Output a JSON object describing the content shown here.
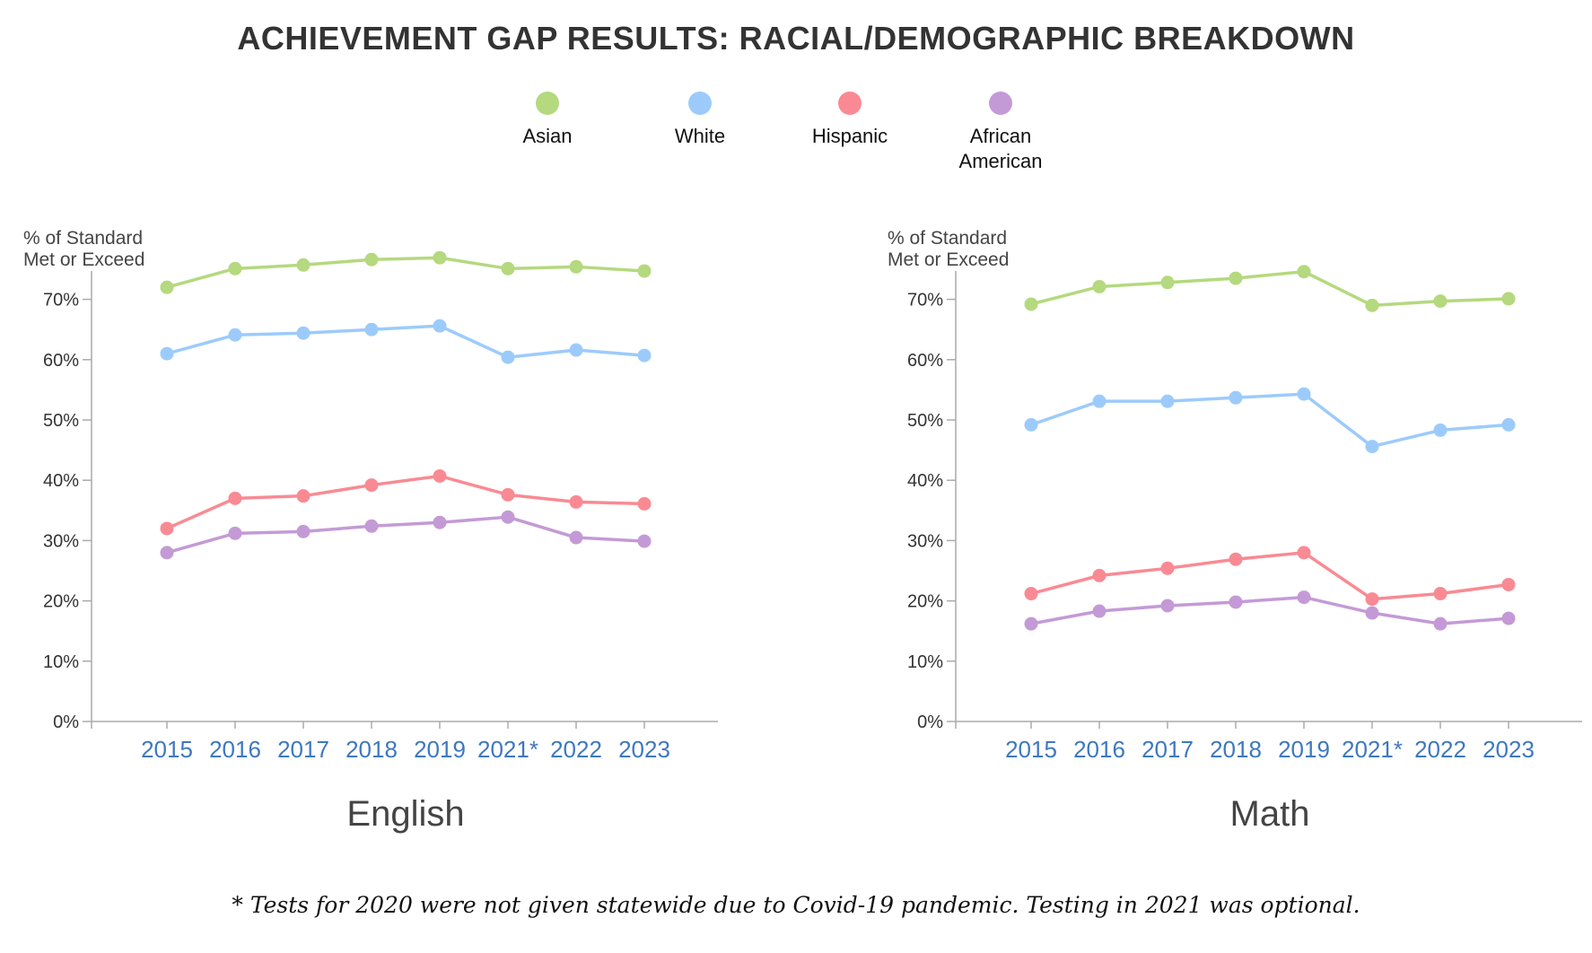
{
  "title": "ACHIEVEMENT GAP RESULTS: RACIAL/DEMOGRAPHIC BREAKDOWN",
  "legend": [
    {
      "label": "Asian",
      "color": "#b4d97e"
    },
    {
      "label": "White",
      "color": "#9ccbfb"
    },
    {
      "label": "Hispanic",
      "color": "#f98a93"
    },
    {
      "label": "African\nAmerican",
      "color": "#c49ad6"
    }
  ],
  "colors": {
    "axis": "#aaaaaa",
    "tick_text": "#333333",
    "x_tick_text": "#3e78c0",
    "subject": "#444444"
  },
  "footnote": "* Tests for 2020 were not given statewide due to Covid-19 pandemic. Testing in 2021 was optional.",
  "chart_data": [
    {
      "type": "line",
      "subject": "English",
      "ylabel": "% of Standard\nMet or Exceed",
      "categories": [
        "2015",
        "2016",
        "2017",
        "2018",
        "2019",
        "2021*",
        "2022",
        "2023"
      ],
      "ylim": [
        0,
        75
      ],
      "yticks": [
        "0%",
        "10%",
        "20%",
        "30%",
        "40%",
        "50%",
        "60%",
        "70%"
      ],
      "grid": false,
      "legend_position": "top-center",
      "series": [
        {
          "name": "Asian",
          "color": "#b4d97e",
          "values": [
            72.0,
            75.1,
            75.7,
            76.6,
            76.9,
            75.1,
            75.4,
            74.7
          ]
        },
        {
          "name": "White",
          "color": "#9ccbfb",
          "values": [
            61.0,
            64.1,
            64.4,
            65.0,
            65.6,
            60.4,
            61.6,
            60.7
          ]
        },
        {
          "name": "Hispanic",
          "color": "#f98a93",
          "values": [
            32.0,
            37.0,
            37.4,
            39.2,
            40.7,
            37.6,
            36.4,
            36.1
          ]
        },
        {
          "name": "African American",
          "color": "#c49ad6",
          "values": [
            28.0,
            31.2,
            31.5,
            32.4,
            33.0,
            33.9,
            30.5,
            29.9
          ]
        }
      ]
    },
    {
      "type": "line",
      "subject": "Math",
      "ylabel": "% of Standard\nMet or Exceed",
      "categories": [
        "2015",
        "2016",
        "2017",
        "2018",
        "2019",
        "2021*",
        "2022",
        "2023"
      ],
      "ylim": [
        0,
        75
      ],
      "yticks": [
        "0%",
        "10%",
        "20%",
        "30%",
        "40%",
        "50%",
        "60%",
        "70%"
      ],
      "grid": false,
      "legend_position": "top-center",
      "series": [
        {
          "name": "Asian",
          "color": "#b4d97e",
          "values": [
            69.2,
            72.1,
            72.8,
            73.5,
            74.6,
            69.0,
            69.7,
            70.1
          ]
        },
        {
          "name": "White",
          "color": "#9ccbfb",
          "values": [
            49.2,
            53.1,
            53.1,
            53.7,
            54.3,
            45.6,
            48.3,
            49.2
          ]
        },
        {
          "name": "Hispanic",
          "color": "#f98a93",
          "values": [
            21.2,
            24.2,
            25.4,
            26.9,
            28.0,
            20.3,
            21.2,
            22.7
          ]
        },
        {
          "name": "African American",
          "color": "#c49ad6",
          "values": [
            16.2,
            18.3,
            19.2,
            19.8,
            20.6,
            18.0,
            16.2,
            17.1
          ]
        }
      ]
    }
  ]
}
